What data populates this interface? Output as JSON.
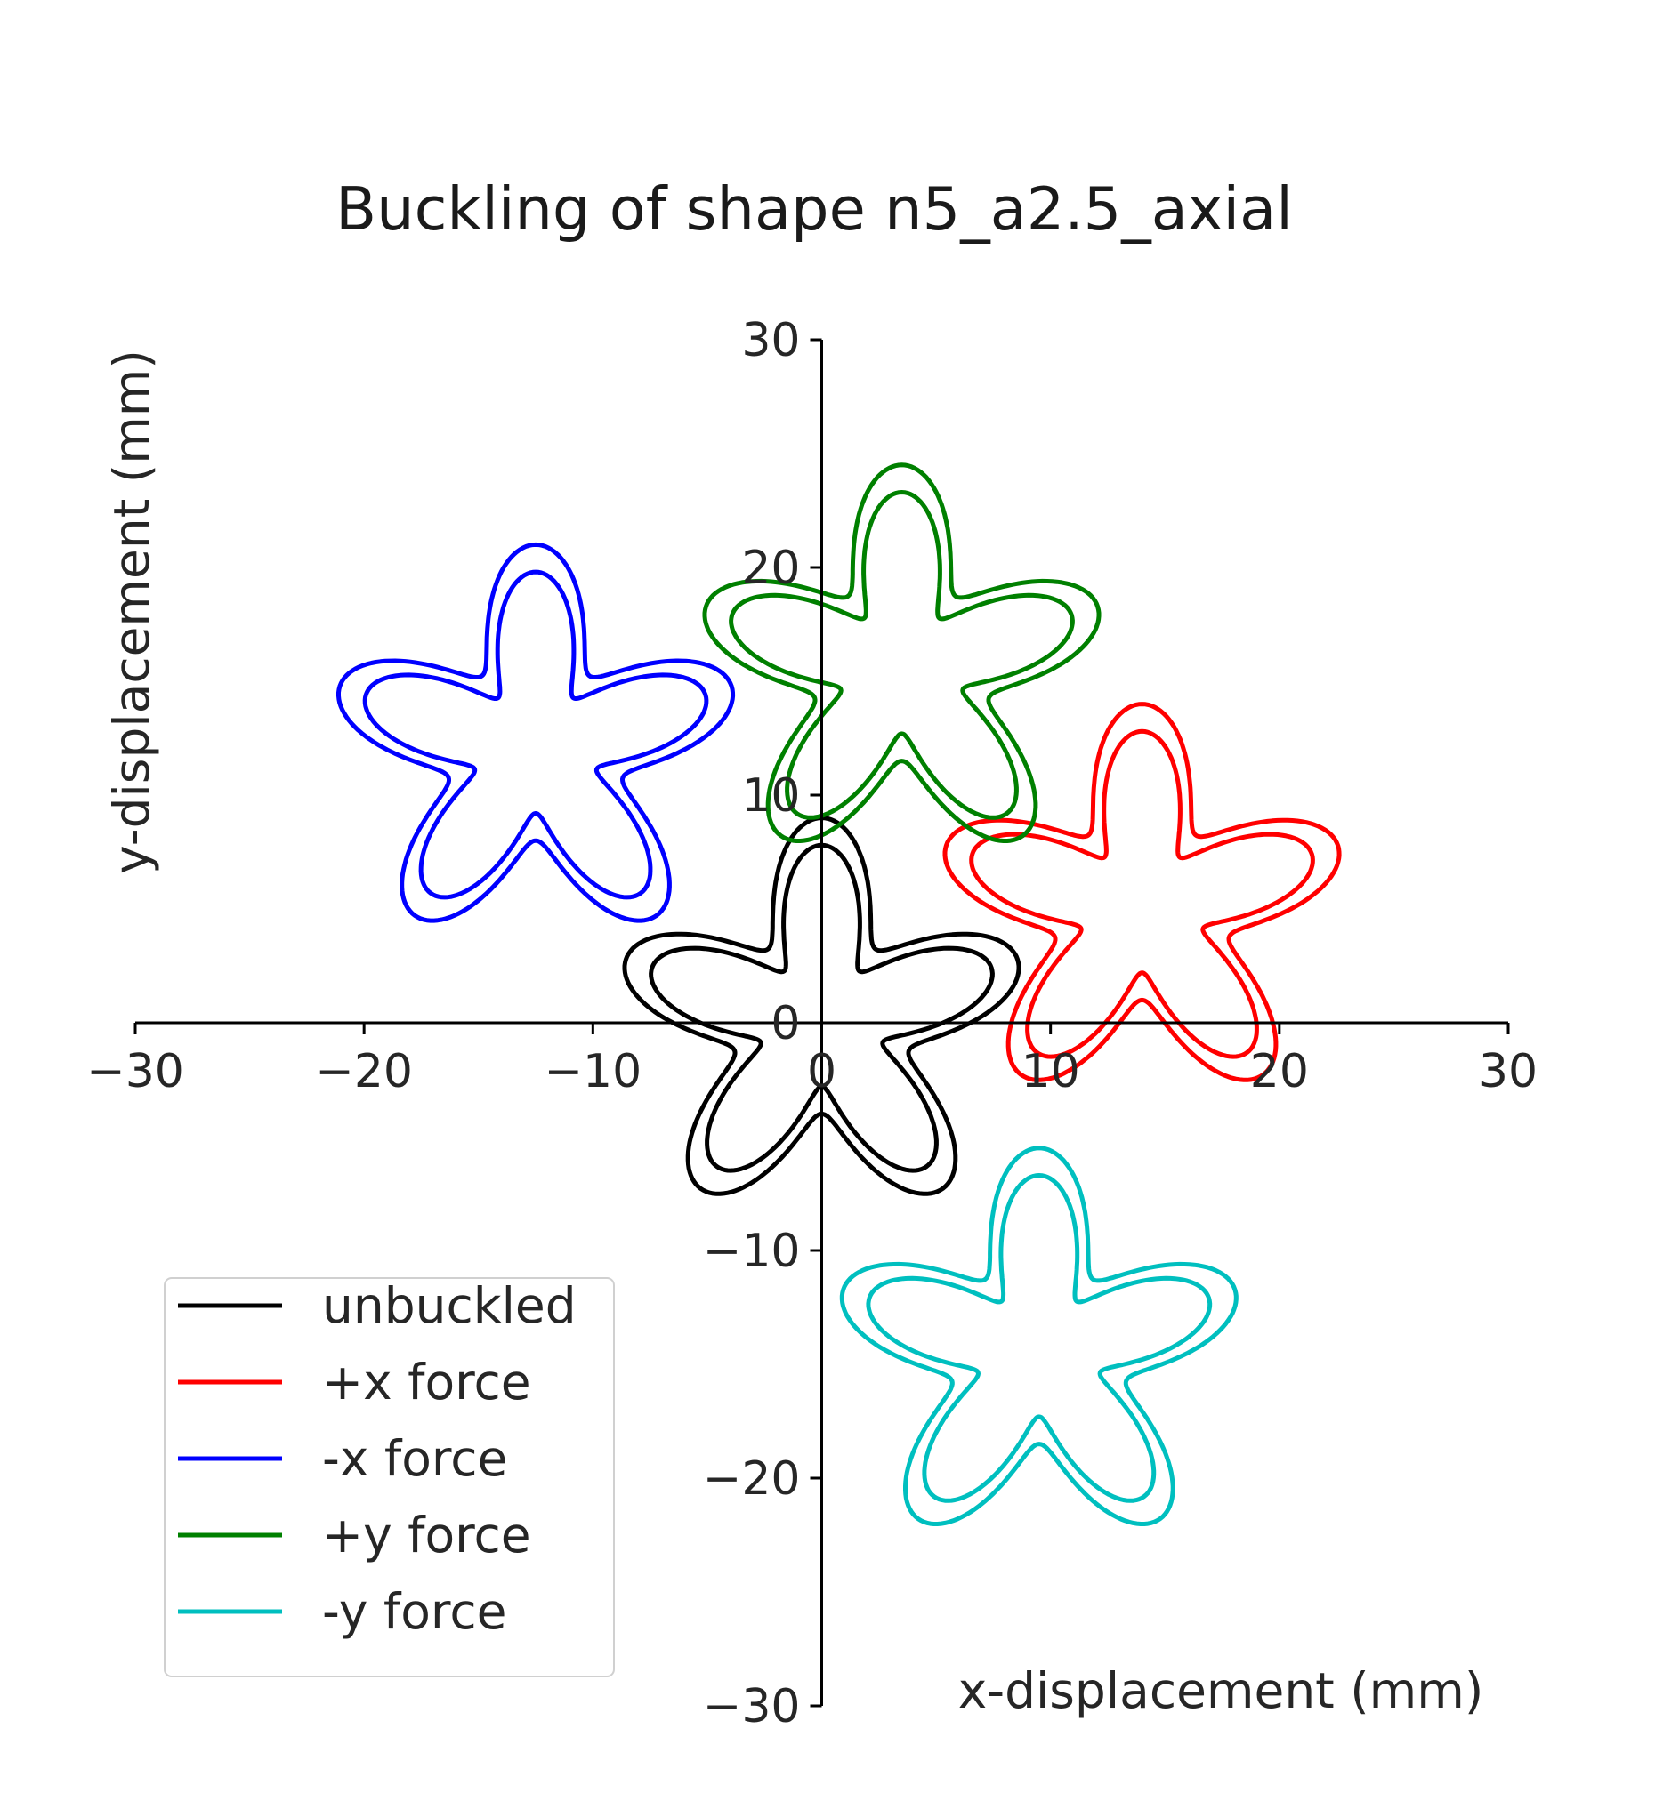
{
  "chart_data": {
    "type": "line",
    "title": "Buckling of shape n5_a2.5_axial",
    "xlabel": "x-displacement (mm)",
    "ylabel": "y-displacement (mm)",
    "xlim": [
      -30,
      30
    ],
    "ylim": [
      -30,
      30
    ],
    "xticks": [
      -30,
      -20,
      -10,
      0,
      10,
      20,
      30
    ],
    "yticks": [
      -30,
      -20,
      -10,
      0,
      10,
      20,
      30
    ],
    "xtick_labels": [
      "−30",
      "−20",
      "−10",
      "0",
      "10",
      "20",
      "30"
    ],
    "ytick_labels": [
      "−30",
      "−20",
      "−10",
      "0",
      "10",
      "20",
      "30"
    ],
    "spines": "centered",
    "grid": false,
    "legend_position": "lower-left",
    "shape": {
      "lobes": 5,
      "amplitude": 2.5,
      "radius_outer": 6.5,
      "radius_inner": 5.3
    },
    "series": [
      {
        "name": "unbuckled",
        "color": "#000000",
        "center": [
          0.0,
          0.0
        ]
      },
      {
        "name": "+x force",
        "color": "#ff0000",
        "center": [
          14.0,
          5.0
        ]
      },
      {
        "name": "-x force",
        "color": "#0000ff",
        "center": [
          -12.5,
          12.0
        ]
      },
      {
        "name": "+y force",
        "color": "#008000",
        "center": [
          3.5,
          15.5
        ]
      },
      {
        "name": "-y force",
        "color": "#00bfbf",
        "center": [
          9.5,
          -14.5
        ]
      }
    ]
  }
}
